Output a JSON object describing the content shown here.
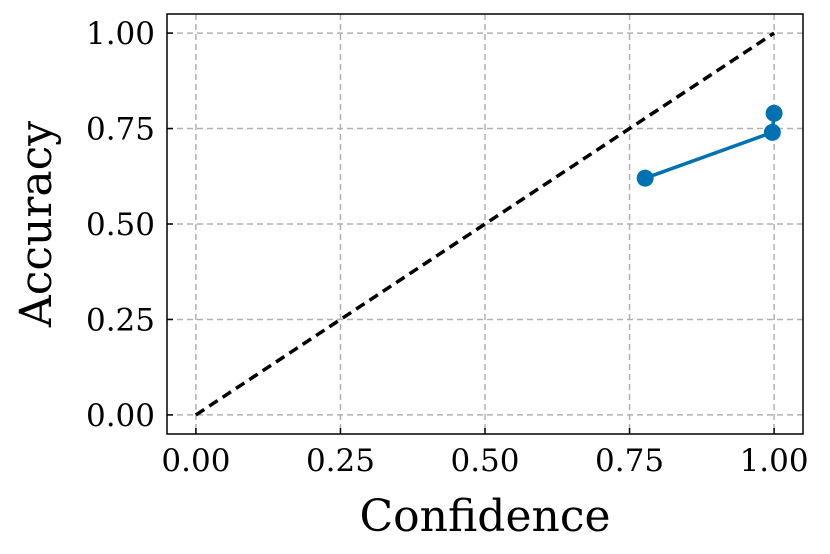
{
  "chart_data": {
    "type": "line",
    "title": "",
    "xlabel": "Confidence",
    "ylabel": "Accuracy",
    "xlim": [
      -0.05,
      1.05
    ],
    "ylim": [
      -0.05,
      1.05
    ],
    "xticks": [
      0.0,
      0.25,
      0.5,
      0.75,
      1.0
    ],
    "yticks": [
      0.0,
      0.25,
      0.5,
      0.75,
      1.0
    ],
    "xtick_labels": [
      "0.00",
      "0.25",
      "0.50",
      "0.75",
      "1.00"
    ],
    "ytick_labels": [
      "0.00",
      "0.25",
      "0.50",
      "0.75",
      "1.00"
    ],
    "grid": true,
    "reference_line": {
      "x": [
        0.0,
        1.0
      ],
      "y": [
        0.0,
        1.0
      ],
      "style": "dashed",
      "color": "#000000"
    },
    "series": [
      {
        "x": [
          0.777,
          0.997,
          1.0
        ],
        "y": [
          0.62,
          0.74,
          0.79
        ],
        "color": "#0072b2",
        "marker": "circle"
      }
    ]
  }
}
